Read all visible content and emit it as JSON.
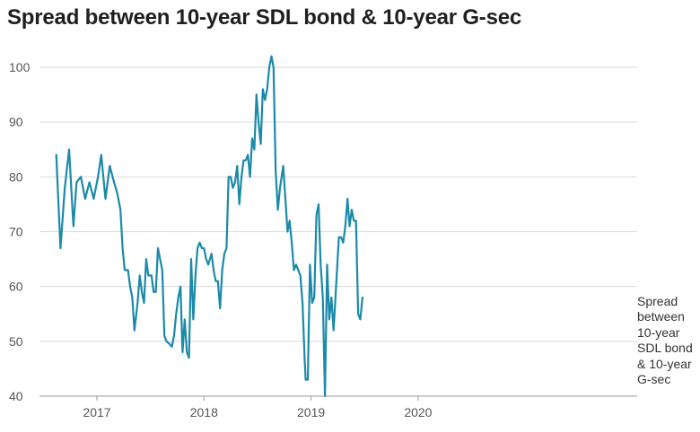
{
  "chart_data": {
    "type": "line",
    "title": "Spread between 10-year SDL bond & 10-year G-sec",
    "xlabel": "",
    "ylabel": "",
    "ylim": [
      40,
      100
    ],
    "yticks": [
      "40",
      "50",
      "60",
      "70",
      "80",
      "90",
      "100"
    ],
    "xticks": [
      {
        "label": "2017",
        "x": 2017.0
      },
      {
        "label": "2018",
        "x": 2018.0
      },
      {
        "label": "2019",
        "x": 2019.0
      },
      {
        "label": "2020",
        "x": 2020.0
      }
    ],
    "grid": true,
    "series": [
      {
        "name": "Spread between 10-year SDL bond & 10-year G-sec",
        "color": "#1b8aa8",
        "points": [
          [
            2016.62,
            84
          ],
          [
            2016.66,
            67
          ],
          [
            2016.7,
            78
          ],
          [
            2016.74,
            85
          ],
          [
            2016.78,
            71
          ],
          [
            2016.81,
            79
          ],
          [
            2016.85,
            80
          ],
          [
            2016.89,
            76
          ],
          [
            2016.93,
            79
          ],
          [
            2016.97,
            76
          ],
          [
            2017.01,
            80
          ],
          [
            2017.04,
            84
          ],
          [
            2017.08,
            76
          ],
          [
            2017.12,
            82
          ],
          [
            2017.16,
            79
          ],
          [
            2017.19,
            77
          ],
          [
            2017.22,
            74
          ],
          [
            2017.24,
            67
          ],
          [
            2017.26,
            63
          ],
          [
            2017.29,
            63
          ],
          [
            2017.31,
            60
          ],
          [
            2017.33,
            58
          ],
          [
            2017.35,
            52
          ],
          [
            2017.38,
            57
          ],
          [
            2017.4,
            62
          ],
          [
            2017.42,
            59
          ],
          [
            2017.44,
            57
          ],
          [
            2017.46,
            65
          ],
          [
            2017.48,
            62
          ],
          [
            2017.51,
            62
          ],
          [
            2017.53,
            59
          ],
          [
            2017.55,
            59
          ],
          [
            2017.57,
            67
          ],
          [
            2017.59,
            65
          ],
          [
            2017.61,
            63
          ],
          [
            2017.63,
            51
          ],
          [
            2017.65,
            50
          ],
          [
            2017.68,
            49.5
          ],
          [
            2017.7,
            49
          ],
          [
            2017.72,
            51
          ],
          [
            2017.74,
            55
          ],
          [
            2017.76,
            58
          ],
          [
            2017.78,
            60
          ],
          [
            2017.8,
            48
          ],
          [
            2017.82,
            54
          ],
          [
            2017.84,
            48
          ],
          [
            2017.86,
            47
          ],
          [
            2017.88,
            65
          ],
          [
            2017.9,
            54
          ],
          [
            2017.92,
            62
          ],
          [
            2017.94,
            67
          ],
          [
            2017.96,
            68
          ],
          [
            2017.98,
            67
          ],
          [
            2018.0,
            67
          ],
          [
            2018.02,
            65
          ],
          [
            2018.04,
            64
          ],
          [
            2018.07,
            66
          ],
          [
            2018.09,
            63
          ],
          [
            2018.11,
            61
          ],
          [
            2018.13,
            61
          ],
          [
            2018.15,
            56
          ],
          [
            2018.17,
            63
          ],
          [
            2018.19,
            66
          ],
          [
            2018.21,
            67
          ],
          [
            2018.23,
            80
          ],
          [
            2018.25,
            80
          ],
          [
            2018.27,
            78
          ],
          [
            2018.29,
            79
          ],
          [
            2018.31,
            82
          ],
          [
            2018.33,
            75
          ],
          [
            2018.35,
            80
          ],
          [
            2018.37,
            83
          ],
          [
            2018.39,
            83
          ],
          [
            2018.41,
            84
          ],
          [
            2018.43,
            80
          ],
          [
            2018.45,
            87
          ],
          [
            2018.47,
            85
          ],
          [
            2018.49,
            95
          ],
          [
            2018.51,
            90
          ],
          [
            2018.53,
            86
          ],
          [
            2018.55,
            96
          ],
          [
            2018.57,
            94
          ],
          [
            2018.59,
            96
          ],
          [
            2018.61,
            100
          ],
          [
            2018.63,
            102
          ],
          [
            2018.65,
            100
          ],
          [
            2018.67,
            81
          ],
          [
            2018.69,
            74
          ],
          [
            2018.71,
            78
          ],
          [
            2018.74,
            82
          ],
          [
            2018.76,
            76
          ],
          [
            2018.78,
            70
          ],
          [
            2018.8,
            72
          ],
          [
            2018.82,
            68
          ],
          [
            2018.84,
            63
          ],
          [
            2018.86,
            64
          ],
          [
            2018.88,
            63
          ],
          [
            2018.9,
            62
          ],
          [
            2018.92,
            57
          ],
          [
            2018.94,
            47
          ],
          [
            2018.95,
            43
          ],
          [
            2018.97,
            43
          ],
          [
            2018.99,
            64
          ],
          [
            2019.01,
            57
          ],
          [
            2019.03,
            58
          ],
          [
            2019.05,
            73
          ],
          [
            2019.07,
            75
          ],
          [
            2019.09,
            64
          ],
          [
            2019.11,
            58
          ],
          [
            2019.13,
            40
          ],
          [
            2019.15,
            64
          ],
          [
            2019.17,
            54
          ],
          [
            2019.19,
            58
          ],
          [
            2019.21,
            52
          ],
          [
            2019.24,
            62
          ],
          [
            2019.26,
            69
          ],
          [
            2019.28,
            69
          ],
          [
            2019.3,
            68
          ],
          [
            2019.32,
            71
          ],
          [
            2019.34,
            76
          ],
          [
            2019.36,
            71
          ],
          [
            2019.38,
            74
          ],
          [
            2019.4,
            72
          ],
          [
            2019.42,
            72
          ],
          [
            2019.44,
            55
          ],
          [
            2019.46,
            54
          ],
          [
            2019.48,
            58
          ]
        ]
      }
    ]
  }
}
